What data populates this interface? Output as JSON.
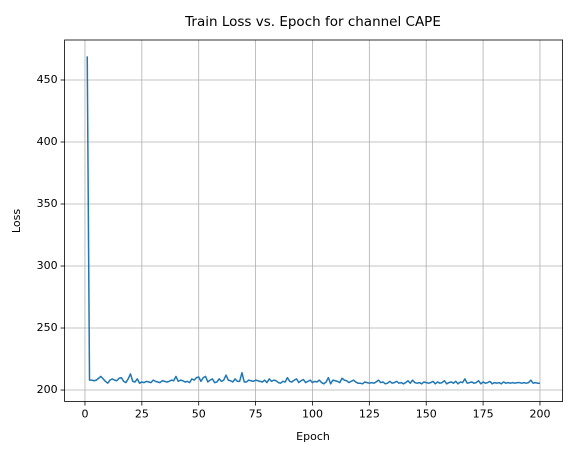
{
  "chart_data": {
    "type": "line",
    "title": "Train Loss vs. Epoch for channel CAPE",
    "xlabel": "Epoch",
    "ylabel": "Loss",
    "x": [
      1,
      2,
      3,
      4,
      5,
      6,
      7,
      8,
      9,
      10,
      11,
      12,
      13,
      14,
      15,
      16,
      17,
      18,
      19,
      20,
      21,
      22,
      23,
      24,
      25,
      26,
      27,
      28,
      29,
      30,
      31,
      32,
      33,
      34,
      35,
      36,
      37,
      38,
      39,
      40,
      41,
      42,
      43,
      44,
      45,
      46,
      47,
      48,
      49,
      50,
      51,
      52,
      53,
      54,
      55,
      56,
      57,
      58,
      59,
      60,
      61,
      62,
      63,
      64,
      65,
      66,
      67,
      68,
      69,
      70,
      71,
      72,
      73,
      74,
      75,
      76,
      77,
      78,
      79,
      80,
      81,
      82,
      83,
      84,
      85,
      86,
      87,
      88,
      89,
      90,
      91,
      92,
      93,
      94,
      95,
      96,
      97,
      98,
      99,
      100,
      101,
      102,
      103,
      104,
      105,
      106,
      107,
      108,
      109,
      110,
      111,
      112,
      113,
      114,
      115,
      116,
      117,
      118,
      119,
      120,
      121,
      122,
      123,
      124,
      125,
      126,
      127,
      128,
      129,
      130,
      131,
      132,
      133,
      134,
      135,
      136,
      137,
      138,
      139,
      140,
      141,
      142,
      143,
      144,
      145,
      146,
      147,
      148,
      149,
      150,
      151,
      152,
      153,
      154,
      155,
      156,
      157,
      158,
      159,
      160,
      161,
      162,
      163,
      164,
      165,
      166,
      167,
      168,
      169,
      170,
      171,
      172,
      173,
      174,
      175,
      176,
      177,
      178,
      179,
      180,
      181,
      182,
      183,
      184,
      185,
      186,
      187,
      188,
      189,
      190,
      191,
      192,
      193,
      194,
      195,
      196,
      197,
      198,
      199,
      200
    ],
    "series": [
      {
        "name": "Train Loss",
        "color": "#1f77b4",
        "values": [
          469,
          208,
          208,
          207.5,
          208,
          209.5,
          211,
          209,
          207,
          205.5,
          208,
          209,
          208,
          207.5,
          209.5,
          210,
          207,
          206,
          209,
          213,
          207,
          206.5,
          209,
          205.5,
          206.5,
          206,
          207,
          206.5,
          206,
          208,
          207,
          206.5,
          206,
          207.5,
          207,
          206.5,
          207,
          208,
          207.5,
          211,
          207,
          208,
          207.5,
          206.5,
          207,
          206,
          209,
          208,
          210,
          210.5,
          207,
          210,
          211,
          206.5,
          208,
          209,
          206,
          206.5,
          209,
          207,
          208,
          212,
          208,
          207.5,
          206.5,
          209,
          207,
          207,
          214,
          206.5,
          206.5,
          208,
          207.5,
          207,
          208,
          207.5,
          207,
          206.5,
          208,
          206,
          209,
          207,
          208,
          207.5,
          206,
          205.5,
          207,
          206.5,
          210,
          207,
          206.5,
          208,
          209,
          206,
          207.5,
          208.5,
          206,
          207,
          208,
          206,
          207,
          206.5,
          208,
          206,
          205,
          206.5,
          210,
          205,
          208,
          207.5,
          207,
          206,
          209.5,
          208,
          207.5,
          206,
          207,
          208,
          206.5,
          205.5,
          205.5,
          205,
          206.5,
          206,
          205.5,
          206,
          205.5,
          206.5,
          208,
          206,
          206.5,
          205,
          205.5,
          207,
          205.5,
          206,
          207,
          205.5,
          206,
          205,
          206,
          207.5,
          205.5,
          208,
          206,
          205.5,
          206,
          205,
          206.5,
          206,
          205.5,
          206,
          207,
          205,
          206.5,
          205.5,
          206,
          207.5,
          205,
          206,
          206.5,
          205.5,
          207,
          205,
          206.5,
          206,
          209,
          205.5,
          206,
          206.5,
          205.5,
          206,
          207.5,
          205,
          206.5,
          205.5,
          206,
          207,
          205,
          206,
          205.5,
          206,
          205,
          206.5,
          205.5,
          206,
          205.5,
          206,
          205.5,
          206,
          206,
          205.5,
          206,
          205.5,
          206,
          208,
          205.5,
          206,
          205.5,
          205.5
        ]
      }
    ],
    "xlim": [
      -8.95,
      209.95
    ],
    "ylim": [
      190.75,
      482.25
    ],
    "xticks": [
      0,
      25,
      50,
      75,
      100,
      125,
      150,
      175,
      200
    ],
    "yticks": [
      200,
      250,
      300,
      350,
      400,
      450
    ],
    "grid": true
  }
}
